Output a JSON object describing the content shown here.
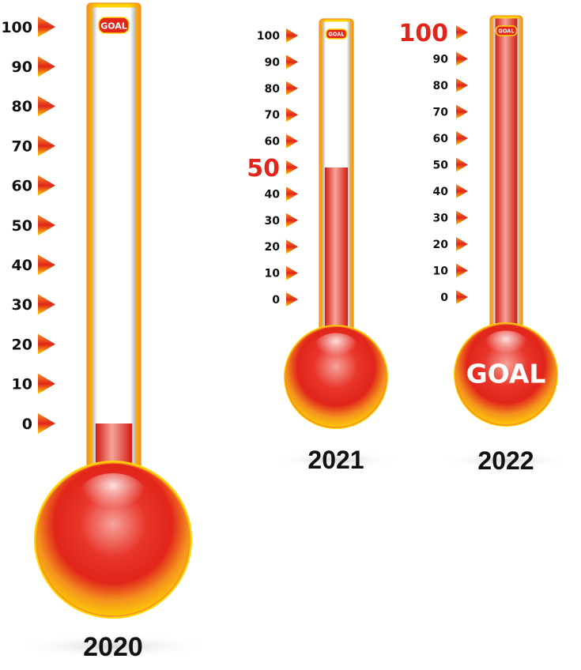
{
  "colors": {
    "red": "#e1251b",
    "yellow": "#ffd400",
    "orange": "#f4911e",
    "text": "#111111",
    "highlight": "#e1251b"
  },
  "scale_labels": [
    "0",
    "10",
    "20",
    "30",
    "40",
    "50",
    "60",
    "70",
    "80",
    "90",
    "100"
  ],
  "goal_tag": "GOAL",
  "thermometers": [
    {
      "year": "2020",
      "level": 0,
      "highlight_label": "",
      "bulb_text": ""
    },
    {
      "year": "2021",
      "level": 50,
      "highlight_label": "50",
      "bulb_text": ""
    },
    {
      "year": "2022",
      "level": 100,
      "highlight_label": "100",
      "bulb_text": "GOAL"
    }
  ]
}
